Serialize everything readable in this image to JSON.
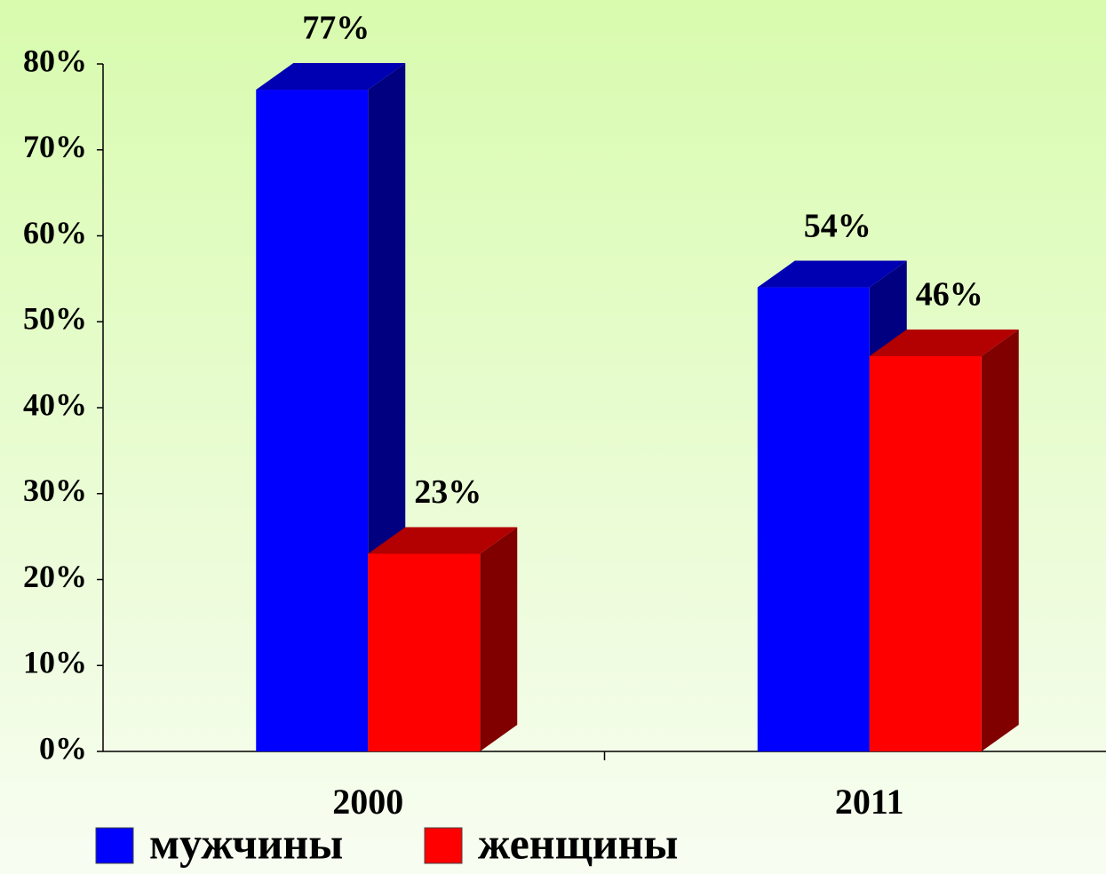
{
  "chart_data": {
    "type": "bar3d",
    "categories": [
      "2000",
      "2011"
    ],
    "series": [
      {
        "name": "мужчины",
        "color": "#0000ff",
        "values": [
          77,
          54
        ],
        "value_labels": [
          "77%",
          "54%"
        ]
      },
      {
        "name": "женщины",
        "color": "#ff0000",
        "values": [
          23,
          46
        ],
        "value_labels": [
          "23%",
          "46%"
        ]
      }
    ],
    "ylim": [
      0,
      80
    ],
    "yticks": [
      {
        "value": 0,
        "label": "0%"
      },
      {
        "value": 10,
        "label": "10%"
      },
      {
        "value": 20,
        "label": "20%"
      },
      {
        "value": 30,
        "label": "30%"
      },
      {
        "value": 40,
        "label": "40%"
      },
      {
        "value": 50,
        "label": "50%"
      },
      {
        "value": 60,
        "label": "60%"
      },
      {
        "value": 70,
        "label": "70%"
      },
      {
        "value": 80,
        "label": "80%"
      }
    ],
    "legend": "bottom"
  }
}
